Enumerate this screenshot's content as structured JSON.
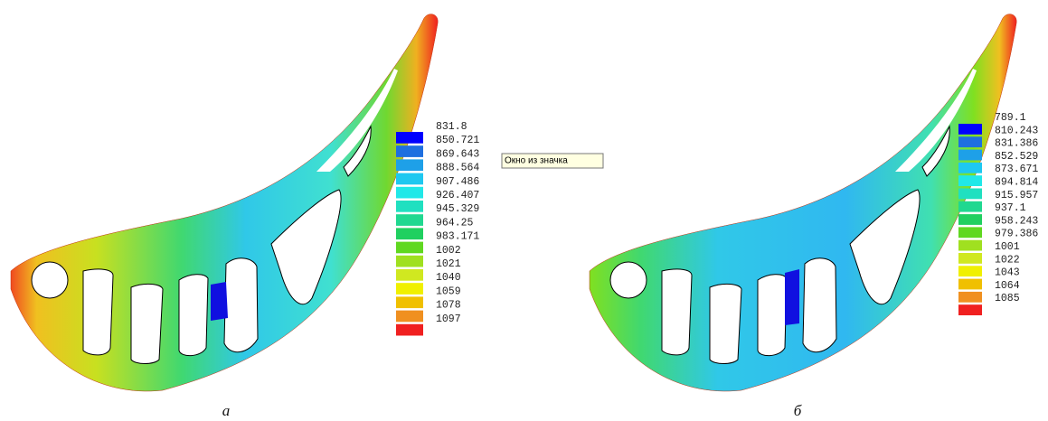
{
  "panels": [
    {
      "legend": [
        "831.8",
        "850.721",
        "869.643",
        "888.564",
        "907.486",
        "926.407",
        "945.329",
        "964.25",
        "983.171",
        "1002",
        "1021",
        "1040",
        "1059",
        "1078",
        "1097"
      ],
      "caption": "а"
    },
    {
      "legend": [
        "789.1",
        "810.243",
        "831.386",
        "852.529",
        "873.671",
        "894.814",
        "915.957",
        "937.1",
        "958.243",
        "979.386",
        "1001",
        "1022",
        "1043",
        "1064",
        "1085"
      ],
      "caption": "б"
    }
  ],
  "tooltip": "Окно из значка"
}
